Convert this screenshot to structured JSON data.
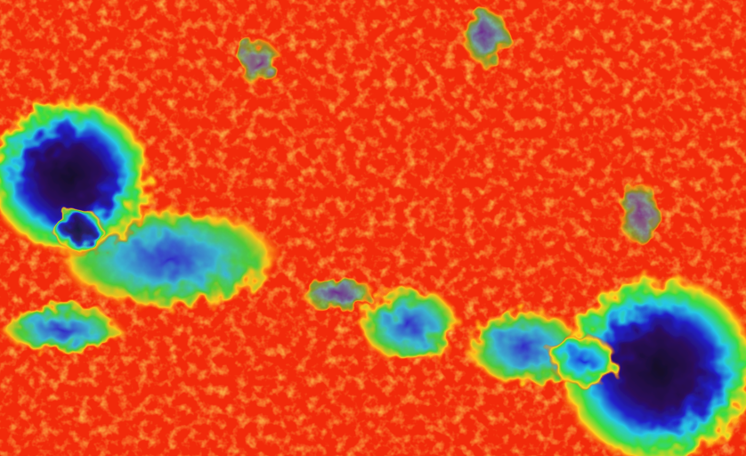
{
  "image": {
    "colormap": {
      "background": "#f22a0a",
      "speckle": "#ffd21e",
      "green": "#3cdc3c",
      "cyan": "#28c8e6",
      "blue": "#1e28dc",
      "umbra": "#2a0a5a",
      "core": "#140828"
    }
  }
}
